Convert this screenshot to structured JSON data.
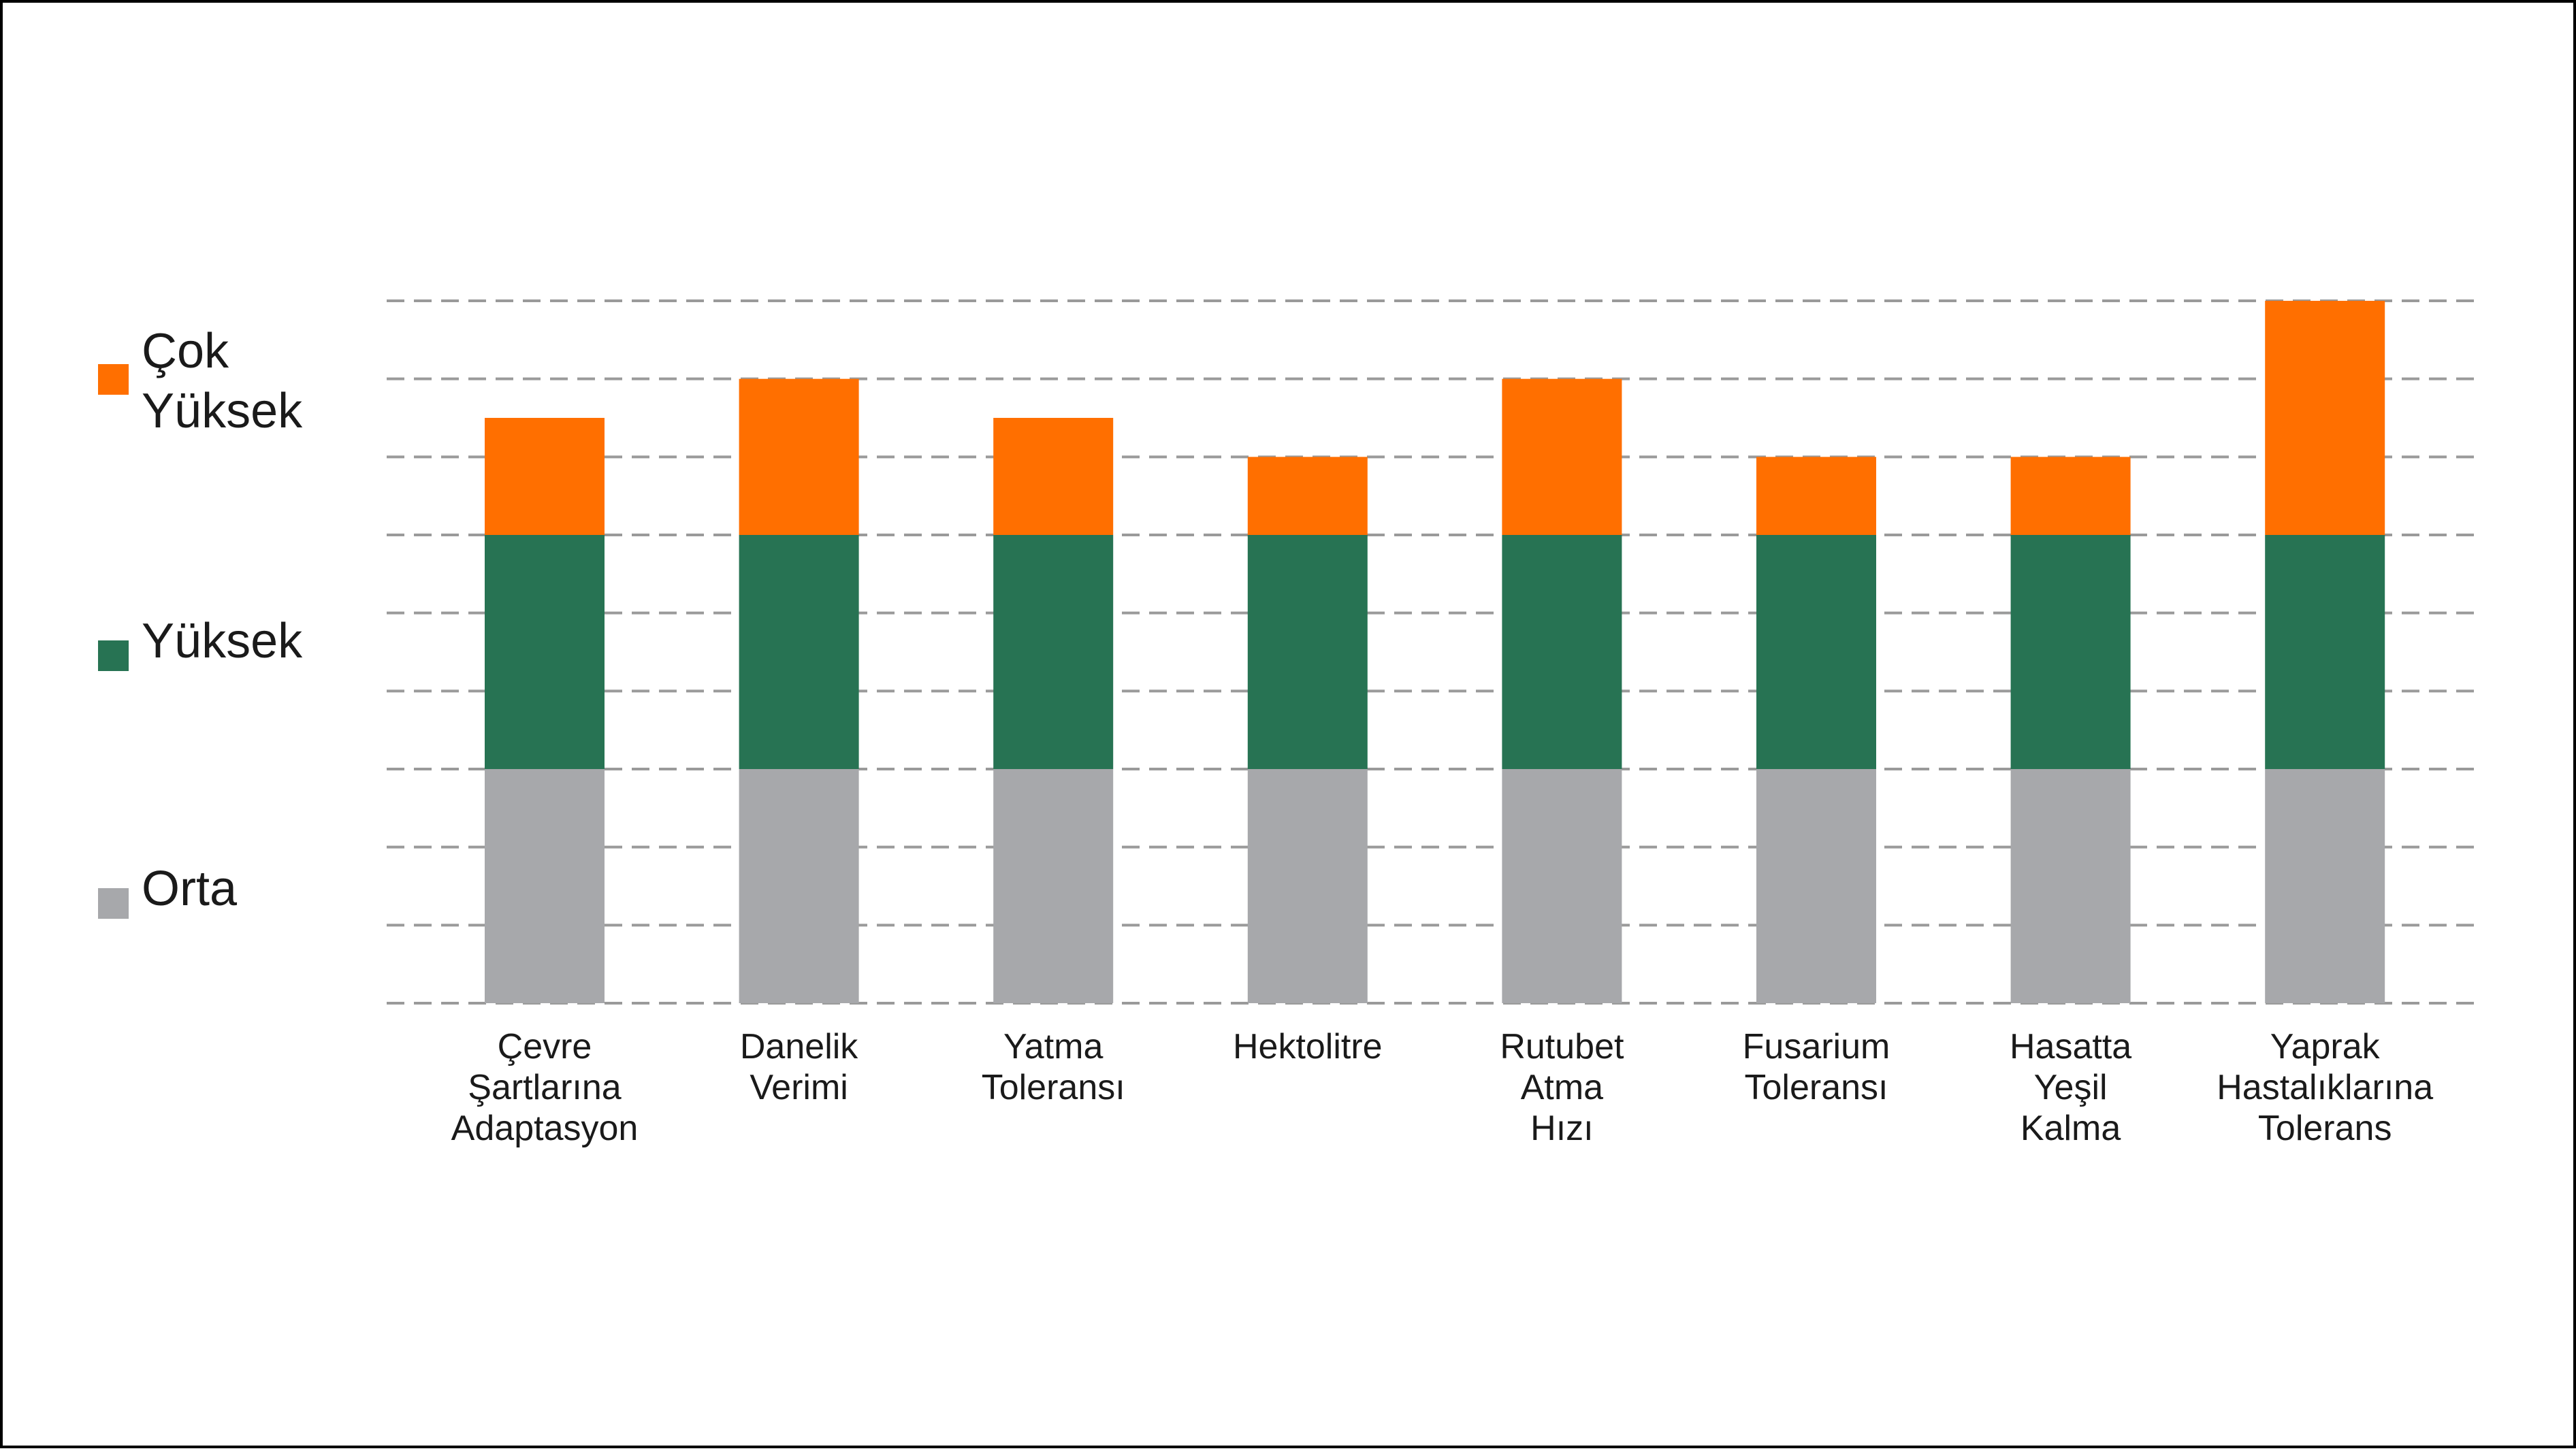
{
  "chart_data": {
    "type": "bar",
    "stacked": true,
    "categories": [
      "Çevre\nŞartlarına\nAdaptasyon",
      "Danelik\nVerimi",
      "Yatma\nToleransı",
      "Hektolitre",
      "Rutubet\nAtma\nHızı",
      "Fusarium\nToleransı",
      "Hasatta\nYeşil\nKalma",
      "Yaprak\nHastalıklarına\nTolerans"
    ],
    "series": [
      {
        "name": "Orta",
        "color": "#a7a8ab",
        "values": [
          3,
          3,
          3,
          3,
          3,
          3,
          3,
          3
        ]
      },
      {
        "name": "Yüksek",
        "color": "#277353",
        "values": [
          3,
          3,
          3,
          3,
          3,
          3,
          3,
          3
        ]
      },
      {
        "name": "Çok\nYüksek",
        "color": "#ff6f00",
        "values": [
          1.5,
          2,
          1.5,
          1,
          2,
          1,
          1,
          3
        ]
      }
    ],
    "ylim": [
      0,
      9
    ],
    "grid": true,
    "grid_style": "dashed",
    "legend_position": "left"
  }
}
